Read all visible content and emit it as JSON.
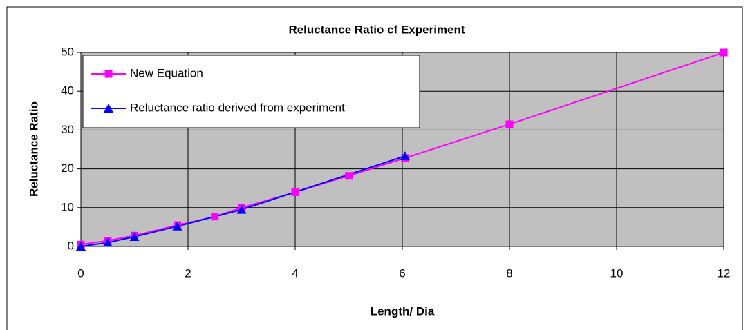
{
  "chart_data": {
    "type": "line",
    "title": "Reluctance Ratio cf Experiment",
    "x_label": "Length/ Dia",
    "y_label": "Reluctance Ratio",
    "series": [
      {
        "name": "New Equation",
        "color": "#ff00ff",
        "marker": "square",
        "x": [
          0,
          0.5,
          1,
          1.8,
          2.5,
          3,
          4,
          5,
          6.05,
          8,
          12
        ],
        "values": [
          0.5,
          1.5,
          2.8,
          5.5,
          7.7,
          10,
          14,
          18.2,
          22.8,
          31.5,
          50
        ]
      },
      {
        "name": "Reluctance ratio derived from experiment",
        "color": "#0000ff",
        "marker": "triangle",
        "x": [
          0,
          0.5,
          1,
          1.8,
          3,
          6.05
        ],
        "values": [
          0,
          1,
          2.5,
          5.2,
          9.5,
          23.3
        ]
      }
    ],
    "xlim": [
      0,
      12
    ],
    "xticks": [
      0,
      2,
      4,
      6,
      8,
      10,
      12
    ],
    "ylim": [
      0,
      50
    ],
    "yticks": [
      0,
      10,
      20,
      30,
      40,
      50
    ],
    "grid": true,
    "legend": "upper left"
  }
}
